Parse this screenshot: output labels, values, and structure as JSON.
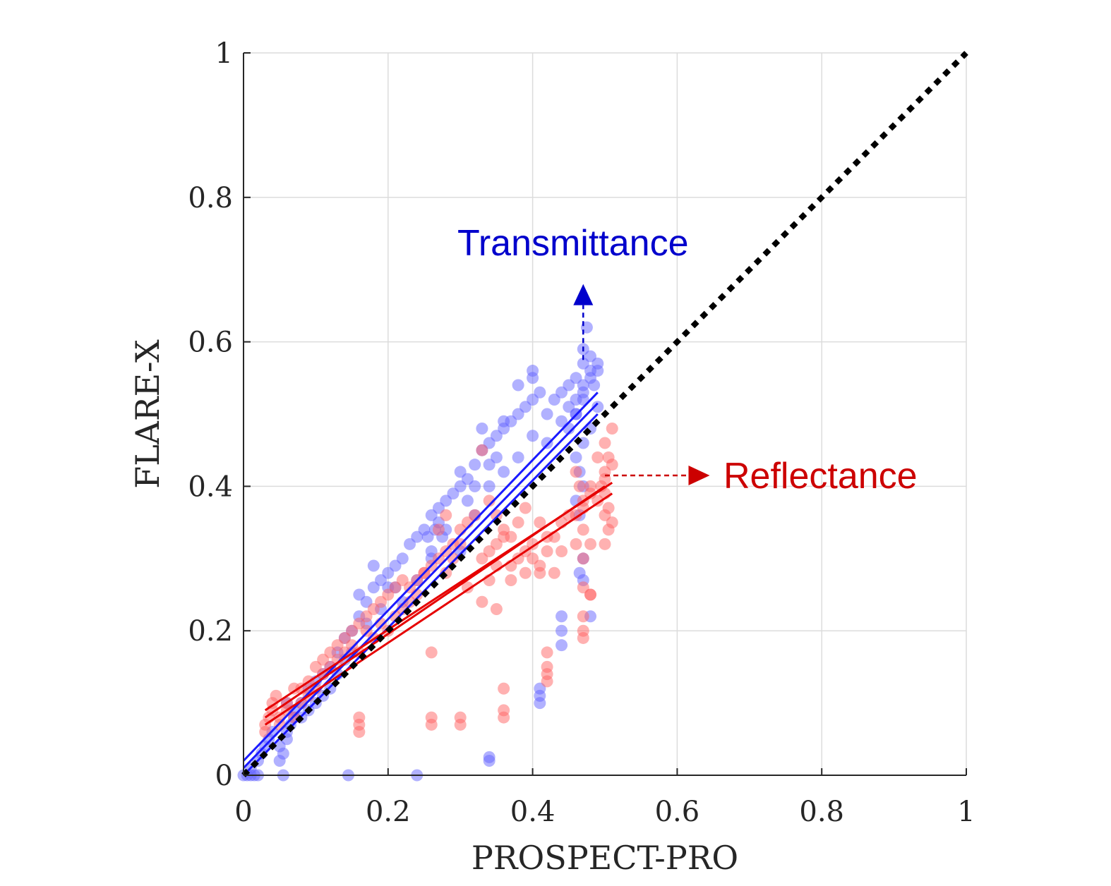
{
  "chart_data": {
    "type": "scatter",
    "xlabel": "PROSPECT-PRO",
    "ylabel": "FLARE-X",
    "xlim": [
      0,
      1
    ],
    "ylim": [
      0,
      1
    ],
    "xticks": [
      "0",
      "0.2",
      "0.4",
      "0.6",
      "0.8",
      "1"
    ],
    "yticks": [
      "0",
      "0.2",
      "0.4",
      "0.6",
      "0.8",
      "1"
    ],
    "grid": true,
    "legend": "none",
    "colors": {
      "transmittance": "#6464ff",
      "reflectance": "#ff6464",
      "fit_t": "#1a1aff",
      "fit_r": "#e60000",
      "annot_t": "#0000cc",
      "annot_r": "#cc0000",
      "identity": "#000000"
    },
    "identity_line": {
      "x": [
        0,
        1
      ],
      "y": [
        0,
        1
      ]
    },
    "annotations": [
      {
        "text": "Transmittance",
        "series": "transmittance",
        "arrow_from": [
          0.47,
          0.575
        ],
        "arrow_to": [
          0.47,
          0.68
        ]
      },
      {
        "text": "Reflectance",
        "series": "reflectance",
        "arrow_from": [
          0.5,
          0.415
        ],
        "arrow_to": [
          0.645,
          0.415
        ]
      }
    ],
    "series": [
      {
        "key": "transmittance",
        "fit_lines": [
          {
            "x": [
              0.0,
              0.49
            ],
            "y": [
              0.02,
              0.53
            ]
          },
          {
            "x": [
              0.0,
              0.49
            ],
            "y": [
              0.01,
              0.515
            ]
          },
          {
            "x": [
              0.0,
              0.49
            ],
            "y": [
              0.0,
              0.5
            ]
          }
        ],
        "points": [
          [
            0.0,
            0.0
          ],
          [
            0.005,
            0.0
          ],
          [
            0.01,
            0.0
          ],
          [
            0.015,
            0.0
          ],
          [
            0.02,
            0.0
          ],
          [
            0.055,
            0.0
          ],
          [
            0.145,
            0.0
          ],
          [
            0.24,
            0.0
          ],
          [
            0.34,
            0.025
          ],
          [
            0.34,
            0.02
          ],
          [
            0.01,
            0.01
          ],
          [
            0.02,
            0.02
          ],
          [
            0.025,
            0.03
          ],
          [
            0.03,
            0.04
          ],
          [
            0.035,
            0.05
          ],
          [
            0.04,
            0.06
          ],
          [
            0.05,
            0.02
          ],
          [
            0.055,
            0.03
          ],
          [
            0.06,
            0.05
          ],
          [
            0.065,
            0.07
          ],
          [
            0.07,
            0.08
          ],
          [
            0.08,
            0.1
          ],
          [
            0.09,
            0.12
          ],
          [
            0.1,
            0.13
          ],
          [
            0.11,
            0.14
          ],
          [
            0.12,
            0.15
          ],
          [
            0.13,
            0.17
          ],
          [
            0.14,
            0.19
          ],
          [
            0.15,
            0.2
          ],
          [
            0.16,
            0.22
          ],
          [
            0.17,
            0.24
          ],
          [
            0.18,
            0.26
          ],
          [
            0.19,
            0.27
          ],
          [
            0.2,
            0.28
          ],
          [
            0.21,
            0.29
          ],
          [
            0.22,
            0.3
          ],
          [
            0.23,
            0.32
          ],
          [
            0.24,
            0.33
          ],
          [
            0.25,
            0.34
          ],
          [
            0.26,
            0.36
          ],
          [
            0.27,
            0.37
          ],
          [
            0.28,
            0.38
          ],
          [
            0.29,
            0.39
          ],
          [
            0.3,
            0.4
          ],
          [
            0.31,
            0.41
          ],
          [
            0.32,
            0.43
          ],
          [
            0.33,
            0.45
          ],
          [
            0.34,
            0.46
          ],
          [
            0.35,
            0.47
          ],
          [
            0.36,
            0.48
          ],
          [
            0.37,
            0.49
          ],
          [
            0.38,
            0.5
          ],
          [
            0.39,
            0.51
          ],
          [
            0.4,
            0.52
          ],
          [
            0.41,
            0.53
          ],
          [
            0.42,
            0.5
          ],
          [
            0.43,
            0.52
          ],
          [
            0.44,
            0.53
          ],
          [
            0.45,
            0.54
          ],
          [
            0.46,
            0.55
          ],
          [
            0.47,
            0.57
          ],
          [
            0.47,
            0.59
          ],
          [
            0.475,
            0.62
          ],
          [
            0.48,
            0.58
          ],
          [
            0.49,
            0.56
          ],
          [
            0.485,
            0.54
          ],
          [
            0.47,
            0.52
          ],
          [
            0.46,
            0.5
          ],
          [
            0.48,
            0.48
          ],
          [
            0.47,
            0.46
          ],
          [
            0.46,
            0.44
          ],
          [
            0.465,
            0.42
          ],
          [
            0.47,
            0.4
          ],
          [
            0.46,
            0.38
          ],
          [
            0.465,
            0.36
          ],
          [
            0.47,
            0.3
          ],
          [
            0.465,
            0.28
          ],
          [
            0.47,
            0.27
          ],
          [
            0.48,
            0.22
          ],
          [
            0.44,
            0.22
          ],
          [
            0.44,
            0.2
          ],
          [
            0.44,
            0.18
          ],
          [
            0.41,
            0.12
          ],
          [
            0.41,
            0.1
          ],
          [
            0.41,
            0.11
          ],
          [
            0.33,
            0.48
          ],
          [
            0.36,
            0.49
          ],
          [
            0.38,
            0.54
          ],
          [
            0.4,
            0.56
          ],
          [
            0.4,
            0.55
          ],
          [
            0.06,
            0.1
          ],
          [
            0.08,
            0.08
          ],
          [
            0.1,
            0.1
          ],
          [
            0.12,
            0.12
          ],
          [
            0.14,
            0.16
          ],
          [
            0.16,
            0.25
          ],
          [
            0.18,
            0.29
          ],
          [
            0.2,
            0.26
          ],
          [
            0.22,
            0.24
          ],
          [
            0.24,
            0.27
          ],
          [
            0.26,
            0.3
          ],
          [
            0.28,
            0.34
          ],
          [
            0.3,
            0.31
          ],
          [
            0.32,
            0.36
          ],
          [
            0.34,
            0.4
          ],
          [
            0.36,
            0.42
          ],
          [
            0.38,
            0.44
          ],
          [
            0.4,
            0.47
          ],
          [
            0.42,
            0.46
          ],
          [
            0.44,
            0.49
          ],
          [
            0.27,
            0.35
          ],
          [
            0.275,
            0.33
          ],
          [
            0.265,
            0.34
          ],
          [
            0.26,
            0.31
          ],
          [
            0.255,
            0.33
          ],
          [
            0.3,
            0.42
          ],
          [
            0.31,
            0.38
          ],
          [
            0.32,
            0.4
          ],
          [
            0.34,
            0.43
          ],
          [
            0.35,
            0.44
          ],
          [
            0.45,
            0.51
          ],
          [
            0.46,
            0.52
          ],
          [
            0.47,
            0.54
          ],
          [
            0.48,
            0.55
          ],
          [
            0.49,
            0.57
          ],
          [
            0.48,
            0.56
          ],
          [
            0.47,
            0.53
          ],
          [
            0.46,
            0.5
          ],
          [
            0.45,
            0.48
          ],
          [
            0.49,
            0.51
          ],
          [
            0.05,
            0.04
          ],
          [
            0.06,
            0.06
          ],
          [
            0.07,
            0.09
          ],
          [
            0.09,
            0.09
          ],
          [
            0.11,
            0.11
          ],
          [
            0.13,
            0.14
          ],
          [
            0.15,
            0.17
          ],
          [
            0.17,
            0.21
          ],
          [
            0.19,
            0.23
          ],
          [
            0.21,
            0.26
          ]
        ]
      },
      {
        "key": "reflectance",
        "fit_lines": [
          {
            "x": [
              0.03,
              0.5
            ],
            "y": [
              0.08,
              0.4
            ]
          },
          {
            "x": [
              0.03,
              0.51
            ],
            "y": [
              0.07,
              0.39
            ]
          },
          {
            "x": [
              0.03,
              0.51
            ],
            "y": [
              0.09,
              0.405
            ]
          }
        ],
        "points": [
          [
            0.03,
            0.06
          ],
          [
            0.03,
            0.07
          ],
          [
            0.035,
            0.08
          ],
          [
            0.04,
            0.09
          ],
          [
            0.04,
            0.1
          ],
          [
            0.045,
            0.11
          ],
          [
            0.05,
            0.08
          ],
          [
            0.06,
            0.1
          ],
          [
            0.07,
            0.12
          ],
          [
            0.08,
            0.1
          ],
          [
            0.09,
            0.13
          ],
          [
            0.1,
            0.15
          ],
          [
            0.11,
            0.16
          ],
          [
            0.12,
            0.17
          ],
          [
            0.13,
            0.18
          ],
          [
            0.14,
            0.19
          ],
          [
            0.15,
            0.2
          ],
          [
            0.16,
            0.21
          ],
          [
            0.17,
            0.22
          ],
          [
            0.18,
            0.23
          ],
          [
            0.19,
            0.24
          ],
          [
            0.2,
            0.25
          ],
          [
            0.21,
            0.22
          ],
          [
            0.22,
            0.23
          ],
          [
            0.23,
            0.26
          ],
          [
            0.24,
            0.27
          ],
          [
            0.25,
            0.28
          ],
          [
            0.26,
            0.29
          ],
          [
            0.27,
            0.3
          ],
          [
            0.28,
            0.31
          ],
          [
            0.29,
            0.32
          ],
          [
            0.3,
            0.34
          ],
          [
            0.31,
            0.35
          ],
          [
            0.32,
            0.36
          ],
          [
            0.33,
            0.45
          ],
          [
            0.34,
            0.38
          ],
          [
            0.35,
            0.36
          ],
          [
            0.36,
            0.34
          ],
          [
            0.37,
            0.33
          ],
          [
            0.38,
            0.35
          ],
          [
            0.39,
            0.37
          ],
          [
            0.4,
            0.3
          ],
          [
            0.41,
            0.29
          ],
          [
            0.42,
            0.31
          ],
          [
            0.43,
            0.33
          ],
          [
            0.44,
            0.35
          ],
          [
            0.45,
            0.36
          ],
          [
            0.46,
            0.42
          ],
          [
            0.465,
            0.4
          ],
          [
            0.47,
            0.38
          ],
          [
            0.48,
            0.4
          ],
          [
            0.49,
            0.44
          ],
          [
            0.5,
            0.46
          ],
          [
            0.51,
            0.48
          ],
          [
            0.505,
            0.44
          ],
          [
            0.5,
            0.42
          ],
          [
            0.495,
            0.4
          ],
          [
            0.49,
            0.38
          ],
          [
            0.5,
            0.36
          ],
          [
            0.505,
            0.34
          ],
          [
            0.5,
            0.32
          ],
          [
            0.51,
            0.35
          ],
          [
            0.48,
            0.25
          ],
          [
            0.47,
            0.2
          ],
          [
            0.47,
            0.19
          ],
          [
            0.47,
            0.22
          ],
          [
            0.42,
            0.15
          ],
          [
            0.42,
            0.14
          ],
          [
            0.42,
            0.13
          ],
          [
            0.42,
            0.17
          ],
          [
            0.36,
            0.12
          ],
          [
            0.36,
            0.09
          ],
          [
            0.36,
            0.08
          ],
          [
            0.3,
            0.08
          ],
          [
            0.3,
            0.07
          ],
          [
            0.26,
            0.07
          ],
          [
            0.26,
            0.08
          ],
          [
            0.16,
            0.06
          ],
          [
            0.16,
            0.08
          ],
          [
            0.16,
            0.07
          ],
          [
            0.26,
            0.17
          ],
          [
            0.25,
            0.28
          ],
          [
            0.28,
            0.28
          ],
          [
            0.31,
            0.26
          ],
          [
            0.33,
            0.24
          ],
          [
            0.35,
            0.23
          ],
          [
            0.37,
            0.27
          ],
          [
            0.39,
            0.28
          ],
          [
            0.41,
            0.28
          ],
          [
            0.43,
            0.28
          ],
          [
            0.05,
            0.07
          ],
          [
            0.06,
            0.09
          ],
          [
            0.07,
            0.08
          ],
          [
            0.08,
            0.12
          ],
          [
            0.09,
            0.11
          ],
          [
            0.1,
            0.12
          ],
          [
            0.11,
            0.14
          ],
          [
            0.12,
            0.15
          ],
          [
            0.13,
            0.16
          ],
          [
            0.14,
            0.17
          ],
          [
            0.15,
            0.18
          ],
          [
            0.16,
            0.17
          ],
          [
            0.17,
            0.2
          ],
          [
            0.18,
            0.19
          ],
          [
            0.19,
            0.21
          ],
          [
            0.2,
            0.2
          ],
          [
            0.21,
            0.26
          ],
          [
            0.22,
            0.27
          ],
          [
            0.23,
            0.24
          ],
          [
            0.24,
            0.25
          ],
          [
            0.34,
            0.31
          ],
          [
            0.35,
            0.32
          ],
          [
            0.35,
            0.29
          ],
          [
            0.36,
            0.33
          ],
          [
            0.34,
            0.27
          ],
          [
            0.33,
            0.3
          ],
          [
            0.3,
            0.32
          ],
          [
            0.29,
            0.3
          ],
          [
            0.28,
            0.36
          ],
          [
            0.27,
            0.34
          ],
          [
            0.47,
            0.34
          ],
          [
            0.46,
            0.32
          ],
          [
            0.47,
            0.3
          ],
          [
            0.46,
            0.36
          ],
          [
            0.47,
            0.37
          ],
          [
            0.48,
            0.39
          ],
          [
            0.5,
            0.39
          ],
          [
            0.505,
            0.37
          ],
          [
            0.5,
            0.41
          ],
          [
            0.51,
            0.43
          ],
          [
            0.47,
            0.26
          ],
          [
            0.48,
            0.25
          ],
          [
            0.48,
            0.32
          ],
          [
            0.42,
            0.33
          ],
          [
            0.41,
            0.35
          ],
          [
            0.44,
            0.31
          ],
          [
            0.4,
            0.32
          ],
          [
            0.39,
            0.31
          ],
          [
            0.38,
            0.3
          ],
          [
            0.37,
            0.29
          ]
        ]
      }
    ]
  }
}
